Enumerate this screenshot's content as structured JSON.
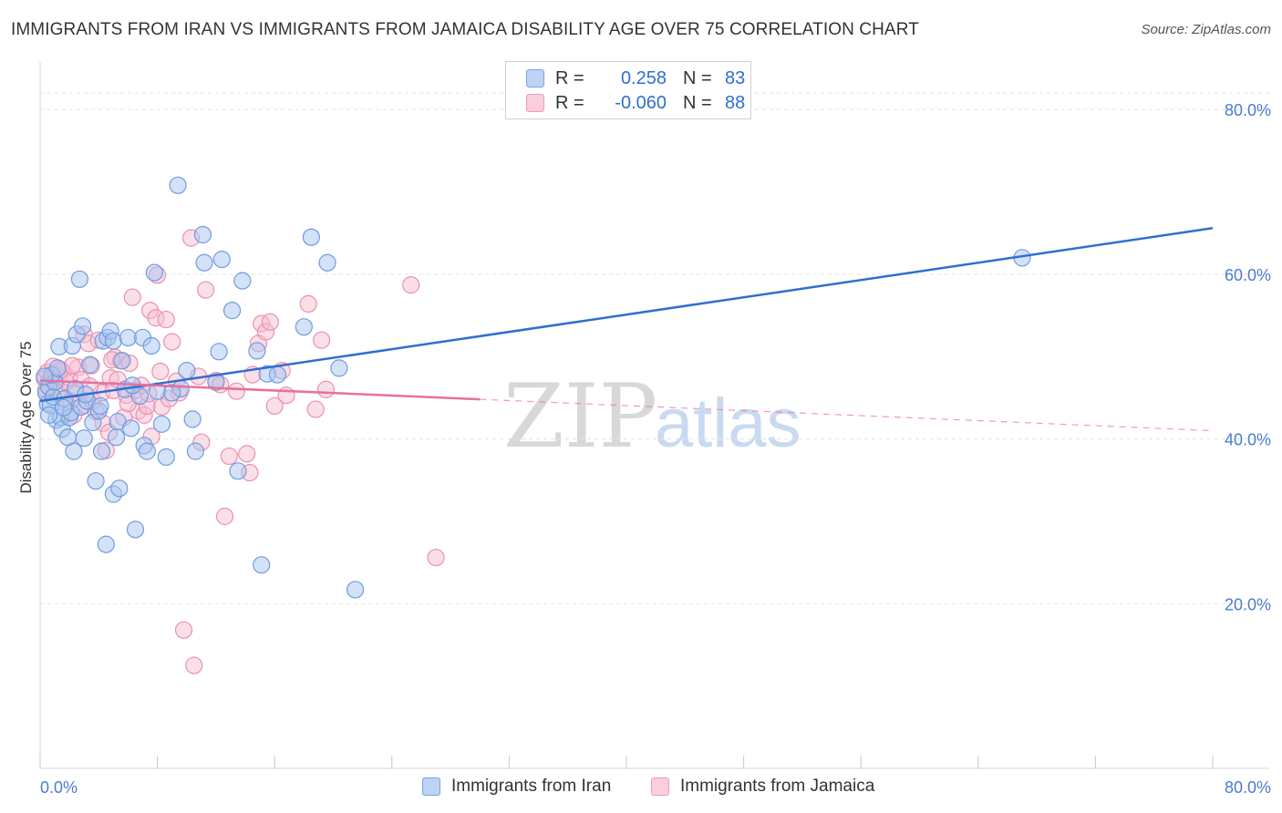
{
  "header": {
    "title": "IMMIGRANTS FROM IRAN VS IMMIGRANTS FROM JAMAICA DISABILITY AGE OVER 75 CORRELATION CHART",
    "source": "Source: ZipAtlas.com"
  },
  "legend": {
    "iran": {
      "r_label": "R =",
      "r_value": "0.258",
      "n_label": "N =",
      "n_value": "83"
    },
    "jamaica": {
      "r_label": "R =",
      "r_value": "-0.060",
      "n_label": "N =",
      "n_value": "88"
    }
  },
  "watermark": {
    "zip": "ZIP",
    "atlas": "atlas"
  },
  "colors": {
    "iran_fill": "#a9c6ef",
    "iran_stroke": "#6f9be0",
    "iran_line": "#2f6fcf",
    "jamaica_fill": "#f6bfd2",
    "jamaica_stroke": "#ec8fb0",
    "jamaica_line": "#e8709b",
    "tick_text": "#4a7bd0",
    "grid": "#e3e3e3"
  },
  "chart_data": {
    "type": "scatter",
    "title": "IMMIGRANTS FROM IRAN VS IMMIGRANTS FROM JAMAICA DISABILITY AGE OVER 75 CORRELATION CHART",
    "xlabel": "",
    "ylabel": "Disability Age Over 75",
    "xlim": [
      0,
      80
    ],
    "ylim": [
      0,
      85
    ],
    "x_tick_labels": [
      "0.0%",
      "80.0%"
    ],
    "y_ticks": [
      20,
      40,
      60,
      80
    ],
    "y_tick_labels": [
      "20.0%",
      "40.0%",
      "60.0%",
      "80.0%"
    ],
    "grid": true,
    "legend_position": "top-center",
    "series": [
      {
        "name": "Immigrants from Iran",
        "trend": {
          "x0": 0,
          "y0": 44.6,
          "x1": 80,
          "y1": 65.6,
          "dashed_from": null
        },
        "points": [
          [
            0.4,
            45.6
          ],
          [
            0.5,
            44.3
          ],
          [
            0.6,
            46.3
          ],
          [
            0.7,
            44.1
          ],
          [
            0.9,
            45.1
          ],
          [
            1.0,
            46.9
          ],
          [
            1.1,
            42.3
          ],
          [
            1.3,
            51.2
          ],
          [
            1.4,
            42.6
          ],
          [
            1.5,
            41.2
          ],
          [
            1.7,
            44.9
          ],
          [
            1.9,
            40.2
          ],
          [
            2.0,
            42.6
          ],
          [
            2.1,
            43.2
          ],
          [
            2.2,
            51.3
          ],
          [
            2.3,
            38.5
          ],
          [
            2.5,
            52.7
          ],
          [
            2.7,
            59.4
          ],
          [
            2.8,
            43.9
          ],
          [
            2.9,
            53.7
          ],
          [
            3.0,
            40.1
          ],
          [
            3.2,
            44.6
          ],
          [
            3.4,
            49.0
          ],
          [
            3.6,
            42.0
          ],
          [
            3.8,
            34.9
          ],
          [
            4.0,
            43.4
          ],
          [
            4.2,
            38.5
          ],
          [
            4.3,
            51.9
          ],
          [
            4.5,
            27.2
          ],
          [
            4.6,
            52.3
          ],
          [
            4.8,
            53.1
          ],
          [
            5.0,
            51.9
          ],
          [
            5.0,
            33.3
          ],
          [
            5.2,
            40.2
          ],
          [
            5.3,
            42.1
          ],
          [
            5.4,
            34.0
          ],
          [
            5.6,
            49.5
          ],
          [
            5.8,
            46.0
          ],
          [
            6.0,
            52.3
          ],
          [
            6.2,
            41.3
          ],
          [
            6.5,
            29.0
          ],
          [
            6.8,
            45.2
          ],
          [
            7.0,
            52.3
          ],
          [
            7.1,
            39.2
          ],
          [
            7.3,
            38.5
          ],
          [
            7.6,
            51.3
          ],
          [
            7.8,
            60.2
          ],
          [
            8.0,
            45.8
          ],
          [
            8.3,
            41.8
          ],
          [
            8.6,
            37.8
          ],
          [
            9.4,
            70.8
          ],
          [
            9.6,
            46.1
          ],
          [
            10.0,
            48.3
          ],
          [
            10.4,
            42.4
          ],
          [
            10.6,
            38.5
          ],
          [
            11.1,
            64.8
          ],
          [
            11.2,
            61.4
          ],
          [
            12.2,
            50.6
          ],
          [
            12.4,
            61.8
          ],
          [
            13.1,
            55.6
          ],
          [
            13.5,
            36.1
          ],
          [
            13.8,
            59.2
          ],
          [
            14.8,
            50.7
          ],
          [
            15.1,
            24.7
          ],
          [
            15.5,
            47.9
          ],
          [
            16.2,
            47.8
          ],
          [
            18.0,
            53.6
          ],
          [
            18.5,
            64.5
          ],
          [
            19.6,
            61.4
          ],
          [
            20.4,
            48.6
          ],
          [
            21.5,
            21.7
          ],
          [
            67.0,
            62.0
          ],
          [
            0.8,
            47.8
          ],
          [
            1.2,
            48.6
          ],
          [
            2.4,
            46.1
          ],
          [
            3.1,
            45.4
          ],
          [
            4.1,
            44.0
          ],
          [
            6.3,
            46.5
          ],
          [
            9.0,
            45.6
          ],
          [
            12.0,
            46.9
          ],
          [
            0.3,
            47.6
          ],
          [
            0.6,
            42.9
          ],
          [
            1.6,
            43.8
          ]
        ]
      },
      {
        "name": "Immigrants from Jamaica",
        "trend": {
          "x0": 0,
          "y0": 47.1,
          "x1": 80,
          "y1": 41.0,
          "dashed_from": 30
        },
        "points": [
          [
            0.3,
            47.3
          ],
          [
            0.5,
            48.1
          ],
          [
            0.6,
            46.5
          ],
          [
            0.7,
            47.2
          ],
          [
            0.9,
            48.8
          ],
          [
            1.0,
            46.3
          ],
          [
            1.1,
            47.8
          ],
          [
            1.2,
            45.7
          ],
          [
            1.3,
            47.5
          ],
          [
            1.5,
            48.2
          ],
          [
            1.6,
            44.8
          ],
          [
            1.8,
            46.9
          ],
          [
            2.0,
            47.4
          ],
          [
            2.1,
            44.6
          ],
          [
            2.3,
            42.9
          ],
          [
            2.4,
            45.6
          ],
          [
            2.6,
            48.7
          ],
          [
            2.8,
            47.2
          ],
          [
            3.0,
            52.7
          ],
          [
            3.1,
            44.1
          ],
          [
            3.3,
            51.6
          ],
          [
            3.5,
            48.9
          ],
          [
            3.6,
            44.6
          ],
          [
            3.8,
            43.3
          ],
          [
            4.0,
            52.0
          ],
          [
            4.2,
            45.6
          ],
          [
            4.3,
            41.9
          ],
          [
            4.5,
            38.6
          ],
          [
            4.7,
            40.8
          ],
          [
            4.8,
            47.4
          ],
          [
            5.0,
            45.9
          ],
          [
            5.1,
            49.9
          ],
          [
            5.3,
            47.2
          ],
          [
            5.5,
            49.5
          ],
          [
            5.7,
            42.6
          ],
          [
            5.9,
            45.3
          ],
          [
            6.1,
            49.2
          ],
          [
            6.3,
            57.2
          ],
          [
            6.5,
            45.9
          ],
          [
            6.7,
            43.4
          ],
          [
            6.9,
            46.5
          ],
          [
            7.1,
            42.9
          ],
          [
            7.3,
            44.0
          ],
          [
            7.5,
            55.6
          ],
          [
            7.6,
            40.3
          ],
          [
            7.9,
            54.7
          ],
          [
            8.0,
            59.9
          ],
          [
            8.3,
            43.9
          ],
          [
            8.6,
            54.5
          ],
          [
            8.8,
            44.9
          ],
          [
            9.0,
            51.8
          ],
          [
            9.5,
            45.6
          ],
          [
            9.8,
            16.8
          ],
          [
            10.3,
            64.4
          ],
          [
            10.5,
            12.5
          ],
          [
            11.0,
            39.6
          ],
          [
            11.3,
            58.1
          ],
          [
            12.0,
            47.1
          ],
          [
            12.6,
            30.6
          ],
          [
            12.9,
            37.9
          ],
          [
            13.4,
            45.8
          ],
          [
            14.1,
            38.2
          ],
          [
            14.3,
            35.9
          ],
          [
            14.9,
            51.6
          ],
          [
            15.1,
            54.0
          ],
          [
            15.4,
            53.0
          ],
          [
            15.7,
            54.2
          ],
          [
            16.0,
            44.0
          ],
          [
            16.5,
            48.3
          ],
          [
            16.8,
            45.3
          ],
          [
            18.3,
            56.4
          ],
          [
            18.8,
            43.6
          ],
          [
            19.2,
            52.0
          ],
          [
            19.5,
            46.0
          ],
          [
            25.3,
            58.7
          ],
          [
            27.0,
            25.6
          ],
          [
            0.4,
            46.0
          ],
          [
            1.4,
            48.4
          ],
          [
            2.2,
            48.9
          ],
          [
            3.4,
            46.4
          ],
          [
            4.9,
            49.6
          ],
          [
            6.0,
            44.3
          ],
          [
            7.4,
            45.5
          ],
          [
            8.2,
            48.2
          ],
          [
            9.3,
            47.0
          ],
          [
            10.8,
            47.6
          ],
          [
            12.3,
            46.6
          ],
          [
            14.5,
            47.8
          ]
        ]
      }
    ]
  },
  "bottom_legend": {
    "iran_label": "Immigrants from Iran",
    "jamaica_label": "Immigrants from Jamaica"
  }
}
